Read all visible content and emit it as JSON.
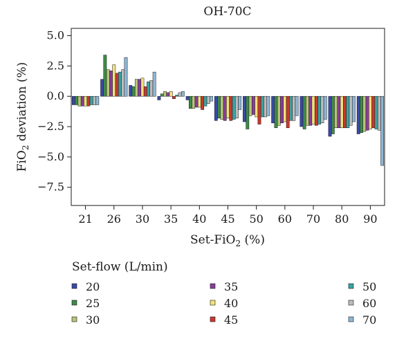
{
  "chart_data": {
    "type": "bar",
    "title": "OH-70C",
    "xlabel": "Set-FiO",
    "xlabel_sub": "2",
    "xlabel_suffix": " (%)",
    "ylabel": "FiO",
    "ylabel_sub": "2",
    "ylabel_suffix": " deviation (%)",
    "ylim": [
      -9.0,
      5.6
    ],
    "yticks": [
      5.0,
      2.5,
      0.0,
      -2.5,
      -5.0,
      -7.5
    ],
    "ytick_labels": [
      "5.0",
      "2.5",
      "0.0",
      "−2.5",
      "−5.0",
      "−7.5"
    ],
    "categories": [
      "21",
      "26",
      "30",
      "35",
      "40",
      "45",
      "50",
      "60",
      "70",
      "80",
      "90"
    ],
    "legend_title": "Set-flow (L/min)",
    "series": [
      {
        "name": "20",
        "color": "#3b49a8",
        "values": [
          -0.7,
          1.4,
          0.9,
          -0.3,
          -0.3,
          -2.0,
          -2.1,
          -2.2,
          -2.5,
          -3.3,
          -3.1
        ]
      },
      {
        "name": "25",
        "color": "#3d8a49",
        "values": [
          -0.7,
          3.4,
          0.8,
          0.2,
          -1.0,
          -1.8,
          -2.7,
          -2.6,
          -2.7,
          -3.1,
          -3.0
        ]
      },
      {
        "name": "30",
        "color": "#b8c47a",
        "values": [
          -0.8,
          2.2,
          1.4,
          0.4,
          -1.0,
          -1.9,
          -1.6,
          -2.4,
          -2.4,
          -2.6,
          -2.9
        ]
      },
      {
        "name": "35",
        "color": "#8a3d9a",
        "values": [
          -0.8,
          2.1,
          1.4,
          0.3,
          -0.9,
          -2.0,
          -1.5,
          -2.2,
          -2.4,
          -2.6,
          -2.8
        ]
      },
      {
        "name": "40",
        "color": "#f0e27a",
        "values": [
          -0.8,
          2.6,
          1.5,
          0.4,
          -0.9,
          -1.8,
          -1.7,
          -2.1,
          -2.3,
          -2.6,
          -2.7
        ]
      },
      {
        "name": "45",
        "color": "#c8382e",
        "values": [
          -0.8,
          1.9,
          0.8,
          -0.2,
          -1.1,
          -2.0,
          -2.3,
          -2.6,
          -2.4,
          -2.6,
          -2.6
        ]
      },
      {
        "name": "50",
        "color": "#3aa3a3",
        "values": [
          -0.7,
          2.0,
          1.2,
          0.1,
          -0.8,
          -1.9,
          -1.7,
          -2.0,
          -2.3,
          -2.6,
          -2.7
        ]
      },
      {
        "name": "60",
        "color": "#bcbcbc",
        "values": [
          -0.7,
          2.2,
          1.3,
          0.3,
          -0.6,
          -1.8,
          -1.7,
          -2.0,
          -2.2,
          -2.4,
          -2.8
        ]
      },
      {
        "name": "70",
        "color": "#8fb7d6",
        "values": [
          -0.7,
          3.2,
          2.0,
          0.4,
          -0.4,
          -1.1,
          -1.6,
          -1.6,
          -1.9,
          -2.1,
          -5.7
        ]
      }
    ],
    "grid": false,
    "legend_position": "bottom"
  }
}
